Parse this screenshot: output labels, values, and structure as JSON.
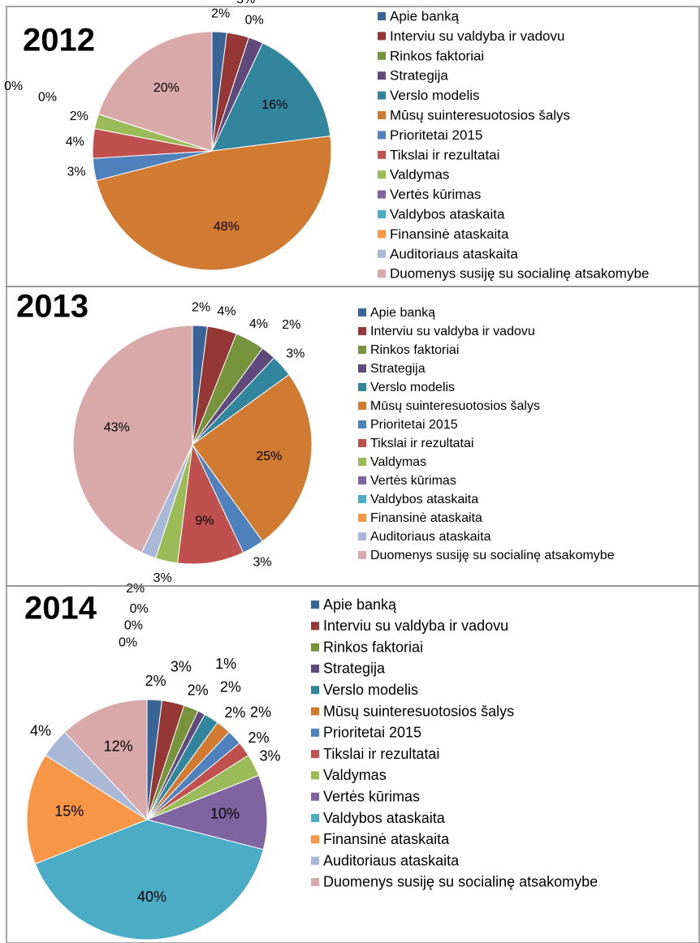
{
  "chart_data": [
    {
      "type": "pie",
      "title": "2012",
      "categories": [
        "Apie banką",
        "Interviu su valdyba ir vadovu",
        "Rinkos faktoriai",
        "Strategija",
        "Verslo modelis",
        "Mūsų suinteresuotosios šalys",
        "Prioritetai 2015",
        "Tikslai ir rezultatai",
        "Valdymas",
        "Vertės kūrimas",
        "Valdybos ataskaita",
        "Finansinė ataskaita",
        "Auditoriaus ataskaita",
        "Duomenys susiję su socialinę atsakomybe"
      ],
      "values": [
        2,
        3,
        0,
        2,
        16,
        48,
        3,
        4,
        2,
        0,
        0,
        0,
        0,
        20
      ],
      "value_labels": [
        "2%",
        "3%",
        "0%",
        "2%",
        "16%",
        "48%",
        "3%",
        "4%",
        "2%",
        "0%",
        "0%",
        "0%",
        "0%",
        "20%"
      ],
      "colors": [
        "#3a6496",
        "#953735",
        "#77933c",
        "#604a7b",
        "#31859c",
        "#d07a32",
        "#4f81bd",
        "#c0504d",
        "#9bbb59",
        "#8064a2",
        "#4bacc6",
        "#f79646",
        "#a9b8d7",
        "#d9a8a8"
      ],
      "legend": "right"
    },
    {
      "type": "pie",
      "title": "2013",
      "categories": [
        "Apie banką",
        "Interviu su valdyba ir vadovu",
        "Rinkos faktoriai",
        "Strategija",
        "Verslo modelis",
        "Mūsų suinteresuotosios šalys",
        "Prioritetai 2015",
        "Tikslai ir rezultatai",
        "Valdymas",
        "Vertės kūrimas",
        "Valdybos ataskaita",
        "Finansinė ataskaita",
        "Auditoriaus ataskaita",
        "Duomenys susiję su socialinę atsakomybe"
      ],
      "values": [
        2,
        4,
        4,
        2,
        3,
        25,
        3,
        9,
        3,
        0,
        0,
        0,
        2,
        43
      ],
      "value_labels": [
        "2%",
        "4%",
        "4%",
        "2%",
        "3%",
        "25%",
        "3%",
        "9%",
        "3%",
        "0%",
        "0%",
        "0%",
        "2%",
        "43%"
      ],
      "colors": [
        "#3a6496",
        "#953735",
        "#77933c",
        "#604a7b",
        "#31859c",
        "#d07a32",
        "#4f81bd",
        "#c0504d",
        "#9bbb59",
        "#8064a2",
        "#4bacc6",
        "#f79646",
        "#a9b8d7",
        "#d9a8a8"
      ],
      "legend": "right"
    },
    {
      "type": "pie",
      "title": "2014",
      "categories": [
        "Apie banką",
        "Interviu su valdyba ir vadovu",
        "Rinkos faktoriai",
        "Strategija",
        "Verslo modelis",
        "Mūsų suinteresuotosios šalys",
        "Prioritetai 2015",
        "Tikslai ir rezultatai",
        "Valdymas",
        "Vertės kūrimas",
        "Valdybos ataskaita",
        "Finansinė ataskaita",
        "Auditoriaus ataskaita",
        "Duomenys susiję su socialinę atsakomybe"
      ],
      "values": [
        2,
        3,
        2,
        1,
        2,
        2,
        2,
        2,
        3,
        10,
        40,
        15,
        4,
        12
      ],
      "value_labels": [
        "2%",
        "3%",
        "2%",
        "1%",
        "2%",
        "2%",
        "2%",
        "2%",
        "3%",
        "10%",
        "40%",
        "15%",
        "4%",
        "12%"
      ],
      "colors": [
        "#3a6496",
        "#953735",
        "#77933c",
        "#604a7b",
        "#31859c",
        "#d07a32",
        "#4f81bd",
        "#c0504d",
        "#9bbb59",
        "#8064a2",
        "#4bacc6",
        "#f79646",
        "#a9b8d7",
        "#d9a8a8"
      ],
      "legend": "right"
    }
  ]
}
